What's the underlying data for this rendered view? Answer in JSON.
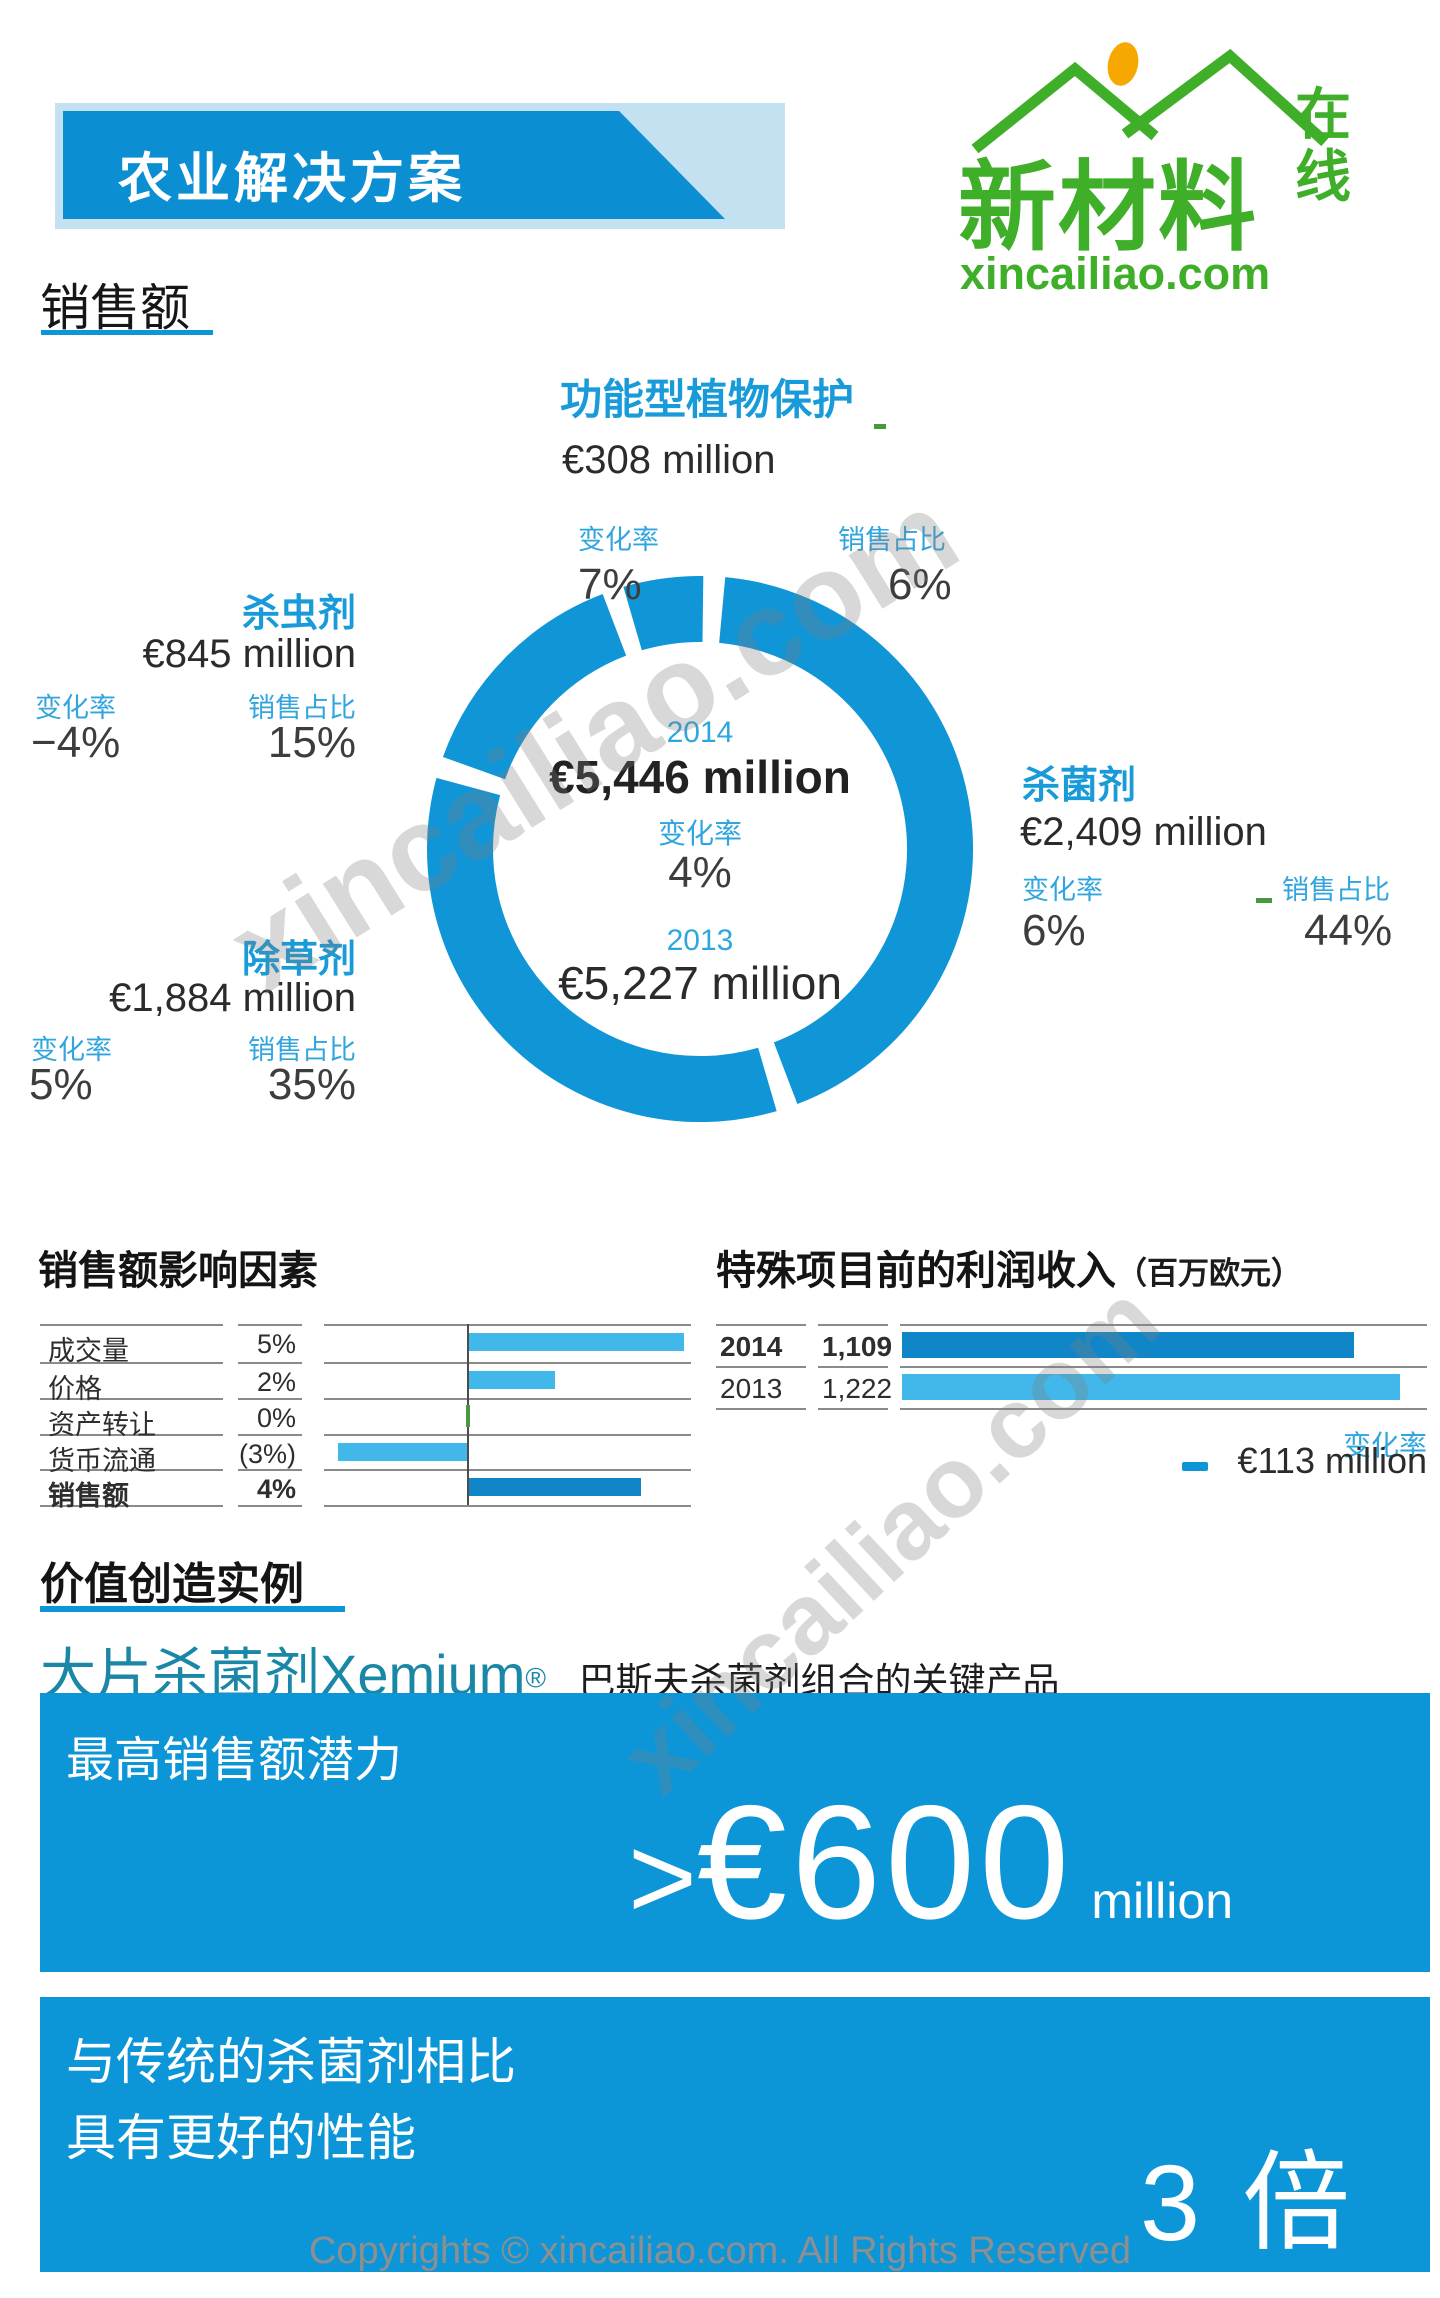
{
  "header": {
    "title": "农业解决方案",
    "logo": {
      "brand": "新材料",
      "vertical_top": "在",
      "vertical_bottom": "线",
      "domain": "xincailiao.com"
    }
  },
  "sales": {
    "heading": "销售额",
    "center": {
      "year_top": "2014",
      "total_top": "€5,446 million",
      "change_label": "变化率",
      "change_value": "4%",
      "year_bottom": "2013",
      "total_bottom": "€5,227 million"
    },
    "functional": {
      "title": "功能型植物保护",
      "value": "€308 million",
      "change_label": "变化率",
      "change": "7%",
      "share_label": "销售占比",
      "share": "6%"
    },
    "insecticides": {
      "title": "杀虫剂",
      "value": "€845 million",
      "change_label": "变化率",
      "change": "−4%",
      "share_label": "销售占比",
      "share": "15%"
    },
    "herbicides": {
      "title": "除草剂",
      "value": "€1,884 million",
      "change_label": "变化率",
      "change": "5%",
      "share_label": "销售占比",
      "share": "35%"
    },
    "fungicides": {
      "title": "杀菌剂",
      "value": "€2,409 million",
      "change_label": "变化率",
      "change": "6%",
      "share_label": "销售占比",
      "share": "44%"
    }
  },
  "factors": {
    "heading": "销售额影响因素"
  },
  "income": {
    "heading": "特殊项目前的利润收入",
    "unit": "（百万欧元）",
    "change_label": "变化率",
    "change_value": "€113 million"
  },
  "value_creation": {
    "heading": "价值创造实例",
    "product": "大片杀菌剂Xemium",
    "reg": "®",
    "subtitle": "巴斯夫杀菌剂组合的关键产品",
    "banner1": {
      "label": "最高销售额潜力",
      "gt": ">",
      "amount": "€600",
      "unit": "million"
    },
    "banner2": {
      "line1": "与传统的杀菌剂相比",
      "line2": "具有更好的性能",
      "big": "3 倍"
    }
  },
  "watermark": {
    "diagonal": "xincailiao.com",
    "copyright": "Copyrights © xincailiao.com. All Rights Reserved"
  },
  "colors": {
    "blue": "#0c96d8",
    "donut_blue": "#1096d7",
    "dark_bar": "#1086c8",
    "light_bar": "#41b8e9",
    "label_blue": "#31a5de",
    "header_bg": "#c3e1f0",
    "teal": "#1b87a6",
    "green": "#4a9641",
    "logo_green": "#3fae29",
    "orange": "#f6a800"
  },
  "chart_data": [
    {
      "type": "pie",
      "subtype": "donut",
      "title": "销售额",
      "start_angle_deg": 3,
      "gap_deg": 2.3,
      "center_labels": {
        "total_2014": "€5,446 million",
        "total_2013": "€5,227 million",
        "change": "4%"
      },
      "segments": [
        {
          "label": "杀菌剂",
          "share_pct": 44,
          "value_2014_eur_million": 2409,
          "change_pct": 6
        },
        {
          "label": "除草剂",
          "share_pct": 35,
          "value_2014_eur_million": 1884,
          "change_pct": 5
        },
        {
          "label": "杀虫剂",
          "share_pct": 15,
          "value_2014_eur_million": 845,
          "change_pct": -4
        },
        {
          "label": "功能型植物保护",
          "share_pct": 6,
          "value_2014_eur_million": 308,
          "change_pct": 7
        }
      ]
    },
    {
      "type": "bar",
      "orientation": "horizontal",
      "title": "销售额影响因素",
      "categories": [
        "成交量",
        "价格",
        "资产转让",
        "货币流通",
        "销售额"
      ],
      "values": [
        5,
        2,
        0,
        -3,
        4
      ],
      "value_labels": [
        "5%",
        "2%",
        "0%",
        "(3%)",
        "4%"
      ],
      "bold_rows": [
        false,
        false,
        false,
        false,
        true
      ],
      "bar_styles": [
        "light",
        "light",
        "zero",
        "light",
        "dark"
      ],
      "xlim": [
        -3.4,
        5.2
      ],
      "grid": false
    },
    {
      "type": "bar",
      "orientation": "horizontal",
      "title": "特殊项目前的利润收入（百万欧元）",
      "categories": [
        "2014",
        "2013"
      ],
      "values": [
        1109,
        1222
      ],
      "value_labels": [
        "1,109",
        "1,222"
      ],
      "bold_rows": [
        true,
        false
      ],
      "bar_styles": [
        "dark",
        "light"
      ],
      "change": "−€113 million"
    }
  ]
}
